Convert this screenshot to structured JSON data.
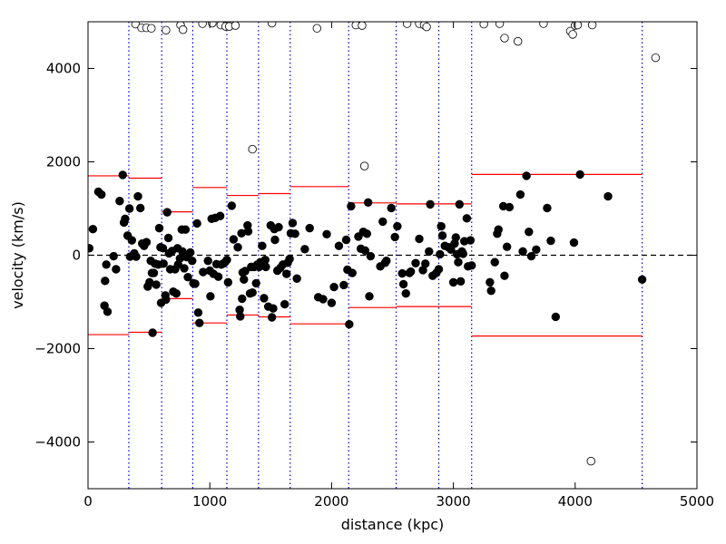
{
  "chart_data": {
    "type": "scatter",
    "title": "",
    "xlabel": "distance (kpc)",
    "ylabel": "velocity (km/s)",
    "xlim": [
      0,
      5000
    ],
    "ylim": [
      -5000,
      5000
    ],
    "xticks": [
      0,
      1000,
      2000,
      3000,
      4000,
      5000
    ],
    "yticks": [
      -4000,
      -2000,
      0,
      2000,
      4000
    ],
    "xtick_labels": [
      "0",
      "1000",
      "2000",
      "3000",
      "4000",
      "5000"
    ],
    "ytick_labels": [
      "−4000",
      "−2000",
      "0",
      "2000",
      "4000"
    ],
    "grid": false,
    "legend": "none",
    "colors": {
      "members": "#000000",
      "interlopers": "#ffffff",
      "envelope": "#ff0000",
      "bin_edges": "#0000cc",
      "zero_line": "#000000"
    },
    "zero_line_y": 0,
    "bin_edges_x": [
      335,
      605,
      860,
      1140,
      1400,
      1660,
      2140,
      2530,
      2880,
      3150,
      4550
    ],
    "envelope": [
      {
        "x0": 0,
        "x1": 335,
        "y": 1700
      },
      {
        "x0": 335,
        "x1": 605,
        "y": 1650
      },
      {
        "x0": 605,
        "x1": 860,
        "y": 930
      },
      {
        "x0": 860,
        "x1": 1140,
        "y": 1450
      },
      {
        "x0": 1140,
        "x1": 1400,
        "y": 1280
      },
      {
        "x0": 1400,
        "x1": 1660,
        "y": 1320
      },
      {
        "x0": 1660,
        "x1": 2140,
        "y": 1470
      },
      {
        "x0": 2140,
        "x1": 2530,
        "y": 1120
      },
      {
        "x0": 2530,
        "x1": 2880,
        "y": 1100
      },
      {
        "x0": 2880,
        "x1": 3150,
        "y": 1100
      },
      {
        "x0": 3150,
        "x1": 4550,
        "y": 1730
      }
    ],
    "series": [
      {
        "marker": "filled-circle",
        "points": [
          [
            10,
            150
          ],
          [
            40,
            560
          ],
          [
            85,
            1360
          ],
          [
            110,
            1300
          ],
          [
            135,
            -1080
          ],
          [
            140,
            -550
          ],
          [
            150,
            -200
          ],
          [
            160,
            -1210
          ],
          [
            210,
            -20
          ],
          [
            230,
            -300
          ],
          [
            260,
            1160
          ],
          [
            285,
            1720
          ],
          [
            295,
            700
          ],
          [
            305,
            780
          ],
          [
            325,
            420
          ],
          [
            340,
            1000
          ],
          [
            345,
            -30
          ],
          [
            360,
            320
          ],
          [
            380,
            40
          ],
          [
            395,
            -30
          ],
          [
            410,
            1260
          ],
          [
            430,
            1010
          ],
          [
            445,
            250
          ],
          [
            460,
            200
          ],
          [
            480,
            280
          ],
          [
            490,
            -670
          ],
          [
            505,
            -580
          ],
          [
            515,
            -120
          ],
          [
            525,
            -380
          ],
          [
            530,
            -1660
          ],
          [
            540,
            -380
          ],
          [
            550,
            -180
          ],
          [
            560,
            -630
          ],
          [
            575,
            -200
          ],
          [
            585,
            580
          ],
          [
            595,
            170
          ],
          [
            600,
            -1020
          ],
          [
            615,
            150
          ],
          [
            620,
            -180
          ],
          [
            635,
            -860
          ],
          [
            640,
            -950
          ],
          [
            650,
            920
          ],
          [
            660,
            370
          ],
          [
            665,
            40
          ],
          [
            675,
            -300
          ],
          [
            690,
            90
          ],
          [
            700,
            -780
          ],
          [
            715,
            -300
          ],
          [
            725,
            -820
          ],
          [
            735,
            150
          ],
          [
            740,
            -200
          ],
          [
            755,
            -70
          ],
          [
            770,
            550
          ],
          [
            775,
            80
          ],
          [
            790,
            -280
          ],
          [
            800,
            550
          ],
          [
            810,
            -40
          ],
          [
            820,
            -470
          ],
          [
            840,
            60
          ],
          [
            855,
            -120
          ],
          [
            865,
            -600
          ],
          [
            880,
            -610
          ],
          [
            895,
            680
          ],
          [
            905,
            -1230
          ],
          [
            915,
            -1450
          ],
          [
            945,
            -360
          ],
          [
            985,
            -120
          ],
          [
            1000,
            -330
          ],
          [
            1005,
            -880
          ],
          [
            1015,
            780
          ],
          [
            1030,
            -400
          ],
          [
            1045,
            800
          ],
          [
            1055,
            -190
          ],
          [
            1070,
            -460
          ],
          [
            1085,
            840
          ],
          [
            1095,
            -200
          ],
          [
            1110,
            -180
          ],
          [
            1125,
            -150
          ],
          [
            1140,
            -100
          ],
          [
            1150,
            -580
          ],
          [
            1180,
            1060
          ],
          [
            1195,
            340
          ],
          [
            1230,
            170
          ],
          [
            1245,
            -1170
          ],
          [
            1250,
            -1310
          ],
          [
            1260,
            470
          ],
          [
            1265,
            -930
          ],
          [
            1270,
            -370
          ],
          [
            1280,
            -520
          ],
          [
            1290,
            -340
          ],
          [
            1310,
            640
          ],
          [
            1315,
            510
          ],
          [
            1330,
            -820
          ],
          [
            1340,
            -250
          ],
          [
            1350,
            -800
          ],
          [
            1365,
            -250
          ],
          [
            1380,
            -600
          ],
          [
            1390,
            -200
          ],
          [
            1405,
            -250
          ],
          [
            1415,
            -150
          ],
          [
            1430,
            200
          ],
          [
            1445,
            -920
          ],
          [
            1455,
            -100
          ],
          [
            1460,
            -250
          ],
          [
            1480,
            -1100
          ],
          [
            1500,
            640
          ],
          [
            1510,
            -1330
          ],
          [
            1520,
            -1140
          ],
          [
            1530,
            560
          ],
          [
            1535,
            330
          ],
          [
            1555,
            -330
          ],
          [
            1565,
            600
          ],
          [
            1580,
            -270
          ],
          [
            1600,
            -200
          ],
          [
            1615,
            -1050
          ],
          [
            1630,
            -400
          ],
          [
            1640,
            -160
          ],
          [
            1655,
            -80
          ],
          [
            1665,
            470
          ],
          [
            1680,
            690
          ],
          [
            1700,
            460
          ],
          [
            1715,
            -500
          ],
          [
            1780,
            130
          ],
          [
            1820,
            580
          ],
          [
            1890,
            -900
          ],
          [
            1930,
            -940
          ],
          [
            1960,
            450
          ],
          [
            2000,
            -1020
          ],
          [
            2020,
            -680
          ],
          [
            2060,
            200
          ],
          [
            2100,
            -640
          ],
          [
            2120,
            330
          ],
          [
            2130,
            -310
          ],
          [
            2145,
            -1480
          ],
          [
            2160,
            1050
          ],
          [
            2170,
            -380
          ],
          [
            2220,
            400
          ],
          [
            2240,
            140
          ],
          [
            2260,
            500
          ],
          [
            2275,
            100
          ],
          [
            2290,
            460
          ],
          [
            2300,
            1130
          ],
          [
            2310,
            -880
          ],
          [
            2320,
            -20
          ],
          [
            2400,
            -240
          ],
          [
            2420,
            720
          ],
          [
            2440,
            -160
          ],
          [
            2450,
            -120
          ],
          [
            2490,
            1010
          ],
          [
            2520,
            390
          ],
          [
            2540,
            620
          ],
          [
            2580,
            -390
          ],
          [
            2590,
            -620
          ],
          [
            2610,
            -820
          ],
          [
            2640,
            -380
          ],
          [
            2650,
            -350
          ],
          [
            2690,
            -170
          ],
          [
            2720,
            350
          ],
          [
            2750,
            -320
          ],
          [
            2770,
            -180
          ],
          [
            2800,
            80
          ],
          [
            2810,
            1090
          ],
          [
            2830,
            -440
          ],
          [
            2860,
            -380
          ],
          [
            2880,
            -300
          ],
          [
            2890,
            20
          ],
          [
            2900,
            620
          ],
          [
            2910,
            420
          ],
          [
            2930,
            200
          ],
          [
            2960,
            170
          ],
          [
            2980,
            120
          ],
          [
            3000,
            -580
          ],
          [
            3010,
            250
          ],
          [
            3020,
            380
          ],
          [
            3030,
            20
          ],
          [
            3040,
            -150
          ],
          [
            3050,
            1090
          ],
          [
            3060,
            -560
          ],
          [
            3070,
            80
          ],
          [
            3080,
            30
          ],
          [
            3090,
            300
          ],
          [
            3110,
            790
          ],
          [
            3120,
            -240
          ],
          [
            3140,
            320
          ],
          [
            3150,
            -220
          ],
          [
            3300,
            -580
          ],
          [
            3310,
            -760
          ],
          [
            3340,
            -150
          ],
          [
            3360,
            460
          ],
          [
            3370,
            550
          ],
          [
            3410,
            1050
          ],
          [
            3420,
            -440
          ],
          [
            3440,
            180
          ],
          [
            3460,
            1030
          ],
          [
            3550,
            1300
          ],
          [
            3570,
            80
          ],
          [
            3600,
            1700
          ],
          [
            3620,
            500
          ],
          [
            3640,
            -20
          ],
          [
            3680,
            120
          ],
          [
            3770,
            1010
          ],
          [
            3800,
            310
          ],
          [
            3840,
            -1320
          ],
          [
            3990,
            270
          ],
          [
            4040,
            1730
          ],
          [
            4270,
            1260
          ],
          [
            4550,
            -520
          ]
        ]
      },
      {
        "marker": "open-circle",
        "points": [
          [
            390,
            4950
          ],
          [
            440,
            4870
          ],
          [
            480,
            4870
          ],
          [
            520,
            4860
          ],
          [
            640,
            4820
          ],
          [
            760,
            4930
          ],
          [
            780,
            4830
          ],
          [
            940,
            4960
          ],
          [
            1020,
            4970
          ],
          [
            1090,
            4930
          ],
          [
            1130,
            4900
          ],
          [
            1160,
            4900
          ],
          [
            1210,
            4920
          ],
          [
            1350,
            2270
          ],
          [
            1510,
            4970
          ],
          [
            1880,
            4860
          ],
          [
            2200,
            4930
          ],
          [
            2250,
            4920
          ],
          [
            2270,
            1910
          ],
          [
            2620,
            4960
          ],
          [
            2720,
            4960
          ],
          [
            2760,
            4930
          ],
          [
            2780,
            4890
          ],
          [
            3250,
            4950
          ],
          [
            3380,
            4960
          ],
          [
            3420,
            4650
          ],
          [
            3530,
            4580
          ],
          [
            3740,
            4960
          ],
          [
            3960,
            4800
          ],
          [
            3980,
            4730
          ],
          [
            4000,
            4920
          ],
          [
            4020,
            4930
          ],
          [
            4130,
            -4410
          ],
          [
            4140,
            4930
          ],
          [
            4660,
            4230
          ]
        ]
      }
    ]
  }
}
